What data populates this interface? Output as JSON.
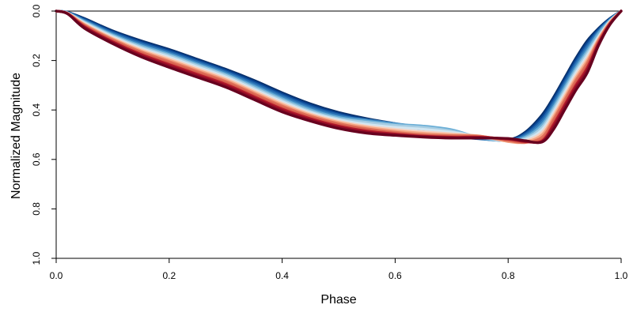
{
  "chart_data": {
    "type": "line",
    "xlabel": "Phase",
    "ylabel": "Normalized Magnitude",
    "xlim": [
      0.0,
      1.0
    ],
    "ylim": [
      0.0,
      1.0
    ],
    "y_inverted": true,
    "grid": false,
    "legend": "none",
    "x_ticks": [
      "0.0",
      "0.2",
      "0.4",
      "0.6",
      "0.8",
      "1.0"
    ],
    "y_ticks": [
      "0.0",
      "0.2",
      "0.4",
      "0.6",
      "0.8",
      "1.0"
    ],
    "palette": [
      "#08306b",
      "#084594",
      "#2166ac",
      "#3a83bf",
      "#6aaed6",
      "#a6cde3",
      "#d1e5f0",
      "#f7d1c0",
      "#f4a582",
      "#e0705a",
      "#d6604d",
      "#b2182b",
      "#8e0c25",
      "#67001f"
    ],
    "series_count": 14,
    "series": [
      {
        "color": "#08306b",
        "x": [
          0.0,
          0.02,
          0.05,
          0.1,
          0.15,
          0.2,
          0.25,
          0.3,
          0.35,
          0.4,
          0.45,
          0.5,
          0.55,
          0.6,
          0.65,
          0.7,
          0.75,
          0.8,
          0.83,
          0.86,
          0.88,
          0.9,
          0.92,
          0.94,
          0.96,
          0.98,
          1.0
        ],
        "y": [
          0.0,
          0.005,
          0.03,
          0.08,
          0.12,
          0.155,
          0.195,
          0.235,
          0.28,
          0.33,
          0.375,
          0.41,
          0.435,
          0.455,
          0.475,
          0.5,
          0.515,
          0.52,
          0.49,
          0.42,
          0.35,
          0.27,
          0.19,
          0.12,
          0.07,
          0.03,
          0.0
        ]
      },
      {
        "color": "#084594",
        "x": [
          0.0,
          0.02,
          0.05,
          0.1,
          0.15,
          0.2,
          0.25,
          0.3,
          0.35,
          0.4,
          0.45,
          0.5,
          0.55,
          0.6,
          0.65,
          0.7,
          0.75,
          0.8,
          0.83,
          0.86,
          0.88,
          0.9,
          0.92,
          0.94,
          0.96,
          0.98,
          1.0
        ],
        "y": [
          0.0,
          0.005,
          0.033,
          0.084,
          0.125,
          0.16,
          0.2,
          0.24,
          0.286,
          0.336,
          0.381,
          0.415,
          0.44,
          0.46,
          0.478,
          0.502,
          0.516,
          0.521,
          0.495,
          0.43,
          0.36,
          0.28,
          0.2,
          0.13,
          0.075,
          0.032,
          0.0
        ]
      },
      {
        "color": "#2166ac",
        "x": [
          0.0,
          0.02,
          0.05,
          0.1,
          0.15,
          0.2,
          0.25,
          0.3,
          0.35,
          0.4,
          0.45,
          0.5,
          0.55,
          0.6,
          0.65,
          0.7,
          0.75,
          0.8,
          0.83,
          0.86,
          0.88,
          0.9,
          0.92,
          0.94,
          0.96,
          0.98,
          1.0
        ],
        "y": [
          0.0,
          0.006,
          0.036,
          0.088,
          0.13,
          0.165,
          0.205,
          0.245,
          0.292,
          0.342,
          0.387,
          0.42,
          0.445,
          0.463,
          0.481,
          0.504,
          0.517,
          0.522,
          0.5,
          0.44,
          0.37,
          0.29,
          0.21,
          0.14,
          0.08,
          0.034,
          0.0
        ]
      },
      {
        "color": "#3a83bf",
        "x": [
          0.0,
          0.02,
          0.05,
          0.1,
          0.15,
          0.2,
          0.25,
          0.3,
          0.35,
          0.4,
          0.45,
          0.5,
          0.55,
          0.6,
          0.65,
          0.7,
          0.75,
          0.8,
          0.83,
          0.86,
          0.88,
          0.9,
          0.92,
          0.94,
          0.96,
          0.98,
          1.0
        ],
        "y": [
          0.0,
          0.006,
          0.039,
          0.092,
          0.135,
          0.17,
          0.21,
          0.25,
          0.298,
          0.348,
          0.393,
          0.425,
          0.44,
          0.455,
          0.47,
          0.49,
          0.515,
          0.523,
          0.505,
          0.45,
          0.38,
          0.3,
          0.22,
          0.15,
          0.085,
          0.036,
          0.0
        ]
      },
      {
        "color": "#6aaed6",
        "x": [
          0.0,
          0.02,
          0.05,
          0.1,
          0.15,
          0.2,
          0.25,
          0.3,
          0.35,
          0.4,
          0.45,
          0.5,
          0.55,
          0.6,
          0.65,
          0.7,
          0.75,
          0.8,
          0.83,
          0.86,
          0.88,
          0.9,
          0.92,
          0.94,
          0.96,
          0.98,
          1.0
        ],
        "y": [
          0.0,
          0.007,
          0.042,
          0.096,
          0.14,
          0.175,
          0.215,
          0.255,
          0.304,
          0.354,
          0.399,
          0.43,
          0.445,
          0.458,
          0.465,
          0.48,
          0.512,
          0.524,
          0.51,
          0.46,
          0.39,
          0.31,
          0.23,
          0.16,
          0.09,
          0.038,
          0.0
        ]
      },
      {
        "color": "#a6cde3",
        "x": [
          0.0,
          0.02,
          0.05,
          0.1,
          0.15,
          0.2,
          0.25,
          0.3,
          0.35,
          0.4,
          0.45,
          0.5,
          0.55,
          0.6,
          0.65,
          0.7,
          0.75,
          0.8,
          0.83,
          0.86,
          0.88,
          0.9,
          0.92,
          0.94,
          0.96,
          0.98,
          1.0
        ],
        "y": [
          0.0,
          0.007,
          0.045,
          0.1,
          0.145,
          0.18,
          0.22,
          0.26,
          0.31,
          0.36,
          0.405,
          0.435,
          0.45,
          0.462,
          0.47,
          0.485,
          0.51,
          0.525,
          0.515,
          0.47,
          0.4,
          0.32,
          0.24,
          0.17,
          0.1,
          0.04,
          0.0
        ]
      },
      {
        "color": "#d1e5f0",
        "x": [
          0.0,
          0.02,
          0.05,
          0.1,
          0.15,
          0.2,
          0.25,
          0.3,
          0.35,
          0.4,
          0.45,
          0.5,
          0.55,
          0.6,
          0.65,
          0.7,
          0.75,
          0.8,
          0.83,
          0.86,
          0.88,
          0.9,
          0.92,
          0.94,
          0.96,
          0.98,
          1.0
        ],
        "y": [
          0.0,
          0.008,
          0.048,
          0.104,
          0.15,
          0.186,
          0.226,
          0.266,
          0.316,
          0.366,
          0.41,
          0.44,
          0.458,
          0.47,
          0.478,
          0.49,
          0.508,
          0.526,
          0.52,
          0.48,
          0.41,
          0.33,
          0.25,
          0.18,
          0.105,
          0.042,
          0.0
        ]
      },
      {
        "color": "#f7d1c0",
        "x": [
          0.0,
          0.02,
          0.05,
          0.1,
          0.15,
          0.2,
          0.25,
          0.3,
          0.35,
          0.4,
          0.45,
          0.5,
          0.55,
          0.6,
          0.65,
          0.7,
          0.75,
          0.8,
          0.83,
          0.86,
          0.88,
          0.9,
          0.92,
          0.94,
          0.96,
          0.98,
          1.0
        ],
        "y": [
          0.0,
          0.008,
          0.051,
          0.108,
          0.155,
          0.192,
          0.232,
          0.272,
          0.322,
          0.372,
          0.415,
          0.445,
          0.465,
          0.478,
          0.488,
          0.496,
          0.506,
          0.527,
          0.525,
          0.49,
          0.42,
          0.34,
          0.26,
          0.19,
          0.11,
          0.044,
          0.0
        ]
      },
      {
        "color": "#f4a582",
        "x": [
          0.0,
          0.02,
          0.05,
          0.1,
          0.15,
          0.2,
          0.25,
          0.3,
          0.35,
          0.4,
          0.45,
          0.5,
          0.55,
          0.6,
          0.65,
          0.7,
          0.75,
          0.8,
          0.83,
          0.86,
          0.88,
          0.9,
          0.92,
          0.94,
          0.96,
          0.98,
          1.0
        ],
        "y": [
          0.0,
          0.009,
          0.054,
          0.112,
          0.16,
          0.198,
          0.238,
          0.278,
          0.328,
          0.378,
          0.42,
          0.45,
          0.47,
          0.484,
          0.494,
          0.5,
          0.505,
          0.528,
          0.53,
          0.5,
          0.43,
          0.35,
          0.27,
          0.2,
          0.115,
          0.046,
          0.0
        ]
      },
      {
        "color": "#e0705a",
        "x": [
          0.0,
          0.02,
          0.05,
          0.1,
          0.15,
          0.2,
          0.25,
          0.3,
          0.35,
          0.4,
          0.45,
          0.5,
          0.55,
          0.6,
          0.65,
          0.7,
          0.75,
          0.8,
          0.83,
          0.86,
          0.88,
          0.9,
          0.92,
          0.94,
          0.96,
          0.98,
          1.0
        ],
        "y": [
          0.0,
          0.009,
          0.057,
          0.116,
          0.165,
          0.204,
          0.244,
          0.284,
          0.334,
          0.384,
          0.425,
          0.455,
          0.476,
          0.49,
          0.5,
          0.504,
          0.506,
          0.524,
          0.532,
          0.51,
          0.44,
          0.36,
          0.28,
          0.21,
          0.12,
          0.048,
          0.0
        ]
      },
      {
        "color": "#d6604d",
        "x": [
          0.0,
          0.02,
          0.05,
          0.1,
          0.15,
          0.2,
          0.25,
          0.3,
          0.35,
          0.4,
          0.45,
          0.5,
          0.55,
          0.6,
          0.65,
          0.7,
          0.75,
          0.8,
          0.83,
          0.86,
          0.88,
          0.9,
          0.92,
          0.94,
          0.96,
          0.98,
          1.0
        ],
        "y": [
          0.0,
          0.01,
          0.06,
          0.12,
          0.17,
          0.21,
          0.25,
          0.29,
          0.34,
          0.39,
          0.43,
          0.46,
          0.48,
          0.494,
          0.503,
          0.507,
          0.508,
          0.52,
          0.53,
          0.52,
          0.45,
          0.37,
          0.29,
          0.22,
          0.125,
          0.05,
          0.0
        ]
      },
      {
        "color": "#b2182b",
        "x": [
          0.0,
          0.02,
          0.05,
          0.1,
          0.15,
          0.2,
          0.25,
          0.3,
          0.35,
          0.4,
          0.45,
          0.5,
          0.55,
          0.6,
          0.65,
          0.7,
          0.75,
          0.8,
          0.83,
          0.86,
          0.88,
          0.9,
          0.92,
          0.94,
          0.96,
          0.98,
          1.0
        ],
        "y": [
          0.0,
          0.01,
          0.063,
          0.124,
          0.175,
          0.216,
          0.256,
          0.296,
          0.346,
          0.396,
          0.435,
          0.465,
          0.485,
          0.497,
          0.506,
          0.51,
          0.51,
          0.518,
          0.528,
          0.525,
          0.46,
          0.38,
          0.3,
          0.23,
          0.13,
          0.052,
          0.0
        ]
      },
      {
        "color": "#8e0c25",
        "x": [
          0.0,
          0.02,
          0.05,
          0.1,
          0.15,
          0.2,
          0.25,
          0.3,
          0.35,
          0.4,
          0.45,
          0.5,
          0.55,
          0.6,
          0.65,
          0.7,
          0.75,
          0.8,
          0.83,
          0.86,
          0.88,
          0.9,
          0.92,
          0.94,
          0.96,
          0.98,
          1.0
        ],
        "y": [
          0.0,
          0.011,
          0.066,
          0.128,
          0.18,
          0.222,
          0.262,
          0.302,
          0.352,
          0.402,
          0.44,
          0.47,
          0.49,
          0.5,
          0.508,
          0.512,
          0.512,
          0.516,
          0.526,
          0.528,
          0.47,
          0.39,
          0.31,
          0.24,
          0.135,
          0.054,
          0.0
        ]
      },
      {
        "color": "#67001f",
        "x": [
          0.0,
          0.02,
          0.05,
          0.1,
          0.15,
          0.2,
          0.25,
          0.3,
          0.35,
          0.4,
          0.45,
          0.5,
          0.55,
          0.6,
          0.65,
          0.7,
          0.75,
          0.8,
          0.83,
          0.86,
          0.88,
          0.9,
          0.92,
          0.94,
          0.96,
          0.98,
          1.0
        ],
        "y": [
          0.0,
          0.011,
          0.07,
          0.132,
          0.185,
          0.228,
          0.268,
          0.308,
          0.358,
          0.408,
          0.445,
          0.475,
          0.494,
          0.503,
          0.51,
          0.514,
          0.514,
          0.515,
          0.524,
          0.53,
          0.48,
          0.4,
          0.32,
          0.25,
          0.14,
          0.056,
          0.0
        ]
      }
    ]
  }
}
